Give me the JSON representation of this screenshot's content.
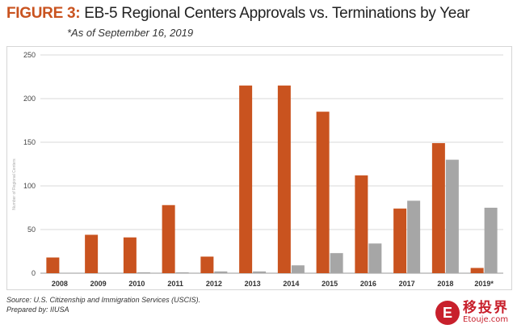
{
  "header": {
    "figure_label": "FIGURE 3:",
    "title": "EB-5 Regional Centers Approvals vs. Terminations by Year",
    "subtitle": "*As of September 16, 2019"
  },
  "footer": {
    "source": "Source: U.S. Citizenship and Immigration Services (USCIS).",
    "prepared_by": "Prepared by: IIUSA"
  },
  "watermark": {
    "chinese": "移投界",
    "english": "Etouje.com"
  },
  "chart_data": {
    "type": "bar",
    "title": "EB-5 Regional Centers Approvals vs. Terminations by Year",
    "categories": [
      "2008",
      "2009",
      "2010",
      "2011",
      "2012",
      "2013",
      "2014",
      "2015",
      "2016",
      "2017",
      "2018",
      "2019*"
    ],
    "series": [
      {
        "color": "#c9531f",
        "values": [
          18,
          44,
          41,
          78,
          19,
          215,
          215,
          185,
          112,
          74,
          149,
          6
        ]
      },
      {
        "color": "#a6a6a6",
        "values": [
          0,
          0,
          1,
          1,
          2,
          2,
          9,
          23,
          34,
          83,
          130,
          75
        ]
      }
    ],
    "ylabel": "Number of Regional Centers",
    "ylim": [
      0,
      250
    ],
    "yticks": [
      0,
      50,
      100,
      150,
      200,
      250
    ],
    "grid": true
  }
}
